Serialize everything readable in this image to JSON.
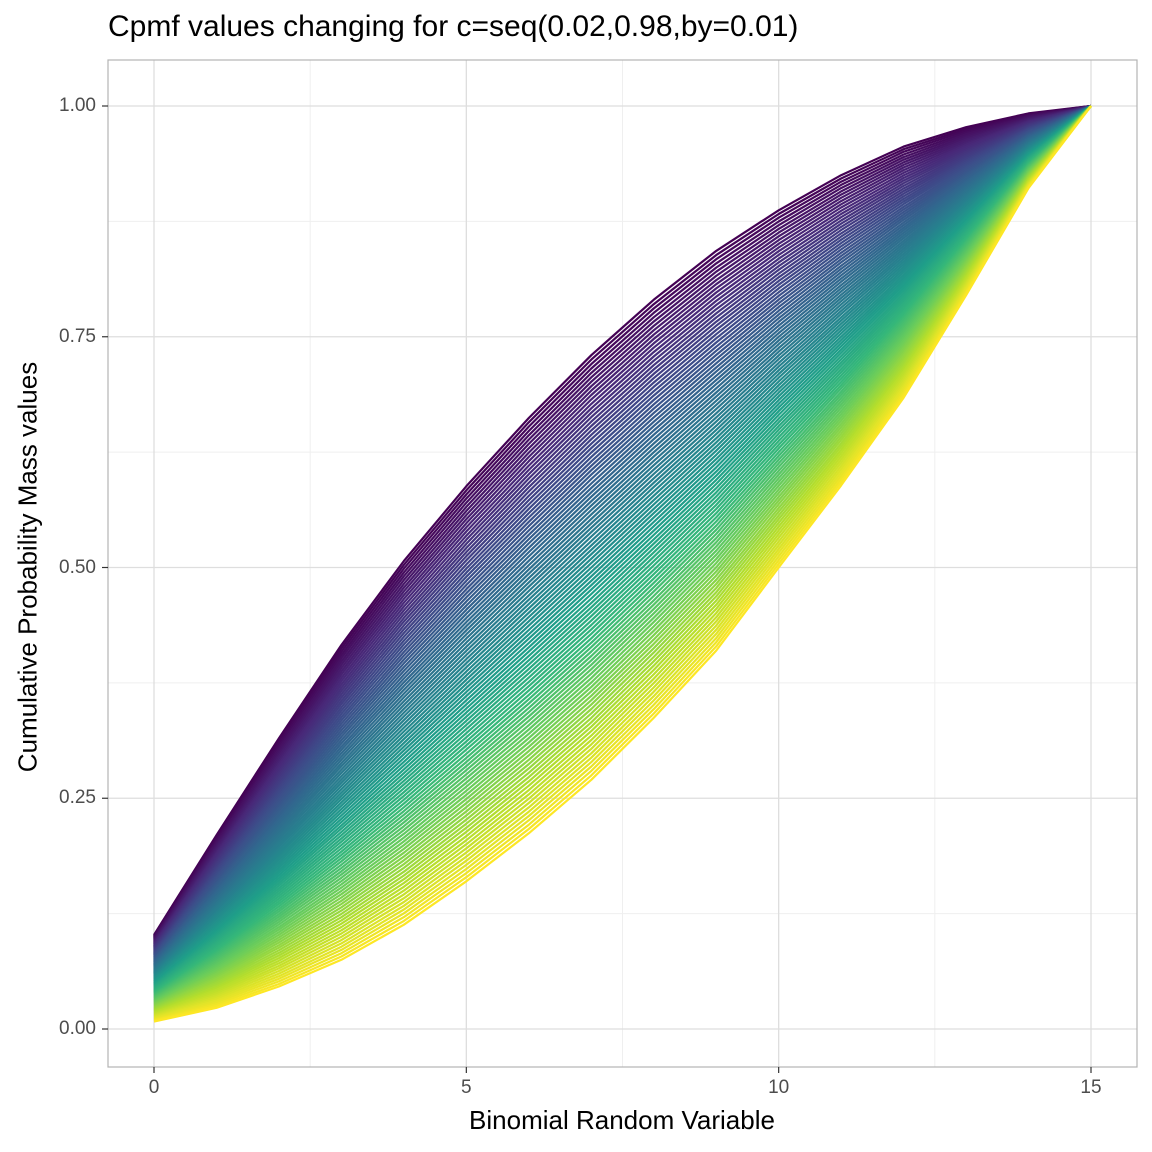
{
  "chart_data": {
    "type": "line",
    "title": "Cpmf values changing for c=seq(0.02,0.98,by=0.01)",
    "xlabel": "Binomial Random Variable",
    "ylabel": "Cumulative Probability Mass values",
    "xlim": [
      -0.7,
      15.7
    ],
    "ylim": [
      -0.04,
      1.05
    ],
    "x_ticks": [
      0,
      5,
      10,
      15
    ],
    "x_tick_labels": [
      "0",
      "5",
      "10",
      "15"
    ],
    "y_ticks": [
      0,
      0.25,
      0.5,
      0.75,
      1.0
    ],
    "y_tick_labels": [
      "0.00",
      "0.25",
      "0.50",
      "0.75",
      "1.00"
    ],
    "grid": true,
    "legend": "none",
    "colormap": "viridis",
    "series_parameter": {
      "name": "c",
      "from": 0.02,
      "to": 0.98,
      "by": 0.01,
      "count": 97
    },
    "x": [
      0,
      1,
      2,
      3,
      4,
      5,
      6,
      7,
      8,
      9,
      10,
      11,
      12,
      13,
      14,
      15
    ],
    "series": [
      {
        "name": "c=0.02 (upper envelope)",
        "color": "#440154",
        "values": [
          0.102,
          0.21,
          0.315,
          0.416,
          0.507,
          0.588,
          0.662,
          0.73,
          0.79,
          0.843,
          0.887,
          0.925,
          0.956,
          0.977,
          0.992,
          1.0
        ]
      },
      {
        "name": "c=0.98 (lower envelope)",
        "color": "#FDE725",
        "values": [
          0.008,
          0.023,
          0.046,
          0.075,
          0.113,
          0.16,
          0.212,
          0.27,
          0.337,
          0.41,
          0.5,
          0.589,
          0.684,
          0.795,
          0.911,
          1.0
        ]
      }
    ]
  },
  "colors": {
    "viridis_stops": [
      "#440154",
      "#482878",
      "#3E4A89",
      "#31688E",
      "#26828E",
      "#1F9E89",
      "#35B779",
      "#6DCD59",
      "#B4DE2C",
      "#FDE725"
    ],
    "panel_border": "#b3b3b3",
    "grid_major": "#dedede",
    "grid_minor": "#efefef",
    "tick_text": "#4d4d4d"
  }
}
